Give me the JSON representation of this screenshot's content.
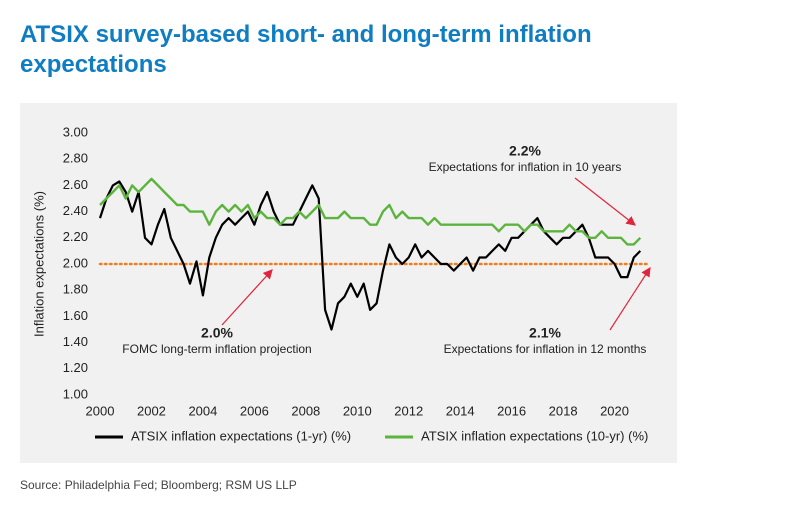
{
  "chart_data": {
    "type": "line",
    "title": "ATSIX survey-based short- and long-term inflation expectations",
    "ylabel": "Inflation expectations (%)",
    "source": "Source: Philadelphia Fed; Bloomberg; RSM US LLP",
    "xlim": [
      2000,
      2021.3
    ],
    "xticks": [
      2000,
      2002,
      2004,
      2006,
      2008,
      2010,
      2012,
      2014,
      2016,
      2018,
      2020
    ],
    "ylim": [
      1,
      3
    ],
    "yticks": [
      {
        "value": 1,
        "label": "1.00"
      },
      {
        "value": 1.2,
        "label": "1.20"
      },
      {
        "value": 1.4,
        "label": "1.40"
      },
      {
        "value": 1.6,
        "label": "1.60"
      },
      {
        "value": 1.8,
        "label": "1.80"
      },
      {
        "value": 2,
        "label": "2.00"
      },
      {
        "value": 2.2,
        "label": "2.20"
      },
      {
        "value": 2.4,
        "label": "2.40"
      },
      {
        "value": 2.6,
        "label": "2.60"
      },
      {
        "value": 2.8,
        "label": "2.80"
      },
      {
        "value": 3,
        "label": "3.00"
      }
    ],
    "reference_line": {
      "value": 2,
      "color": "#f07d1e"
    },
    "annotations": [
      {
        "label": "2.2%",
        "text": "Expectations for inflation in 10 years"
      },
      {
        "label": "2.0%",
        "text": "FOMC long-term inflation projection"
      },
      {
        "label": "2.1%",
        "text": "Expectations for inflation in 12 months"
      }
    ],
    "x": [
      2000,
      2000.25,
      2000.5,
      2000.75,
      2001,
      2001.25,
      2001.5,
      2001.75,
      2002,
      2002.25,
      2002.5,
      2002.75,
      2003,
      2003.25,
      2003.5,
      2003.75,
      2004,
      2004.25,
      2004.5,
      2004.75,
      2005,
      2005.25,
      2005.5,
      2005.75,
      2006,
      2006.25,
      2006.5,
      2006.75,
      2007,
      2007.25,
      2007.5,
      2007.75,
      2008,
      2008.25,
      2008.5,
      2008.75,
      2009,
      2009.25,
      2009.5,
      2009.75,
      2010,
      2010.25,
      2010.5,
      2010.75,
      2011,
      2011.25,
      2011.5,
      2011.75,
      2012,
      2012.25,
      2012.5,
      2012.75,
      2013,
      2013.25,
      2013.5,
      2013.75,
      2014,
      2014.25,
      2014.5,
      2014.75,
      2015,
      2015.25,
      2015.5,
      2015.75,
      2016,
      2016.25,
      2016.5,
      2016.75,
      2017,
      2017.25,
      2017.5,
      2017.75,
      2018,
      2018.25,
      2018.5,
      2018.75,
      2019,
      2019.25,
      2019.5,
      2019.75,
      2020,
      2020.25,
      2020.5,
      2020.75,
      2021
    ],
    "series": [
      {
        "name": "ATSIX inflation expectations (1-yr) (%)",
        "color": "#000000",
        "values": [
          2.35,
          2.5,
          2.6,
          2.63,
          2.55,
          2.4,
          2.55,
          2.2,
          2.15,
          2.3,
          2.42,
          2.2,
          2.1,
          2.0,
          1.85,
          2.02,
          1.76,
          2.05,
          2.2,
          2.3,
          2.35,
          2.3,
          2.35,
          2.4,
          2.3,
          2.45,
          2.55,
          2.4,
          2.3,
          2.3,
          2.3,
          2.4,
          2.5,
          2.6,
          2.5,
          1.65,
          1.5,
          1.7,
          1.75,
          1.85,
          1.75,
          1.85,
          1.65,
          1.7,
          1.95,
          2.15,
          2.05,
          2.0,
          2.05,
          2.15,
          2.05,
          2.1,
          2.05,
          2.0,
          2.0,
          1.95,
          2.0,
          2.05,
          1.95,
          2.05,
          2.05,
          2.1,
          2.15,
          2.1,
          2.2,
          2.2,
          2.25,
          2.3,
          2.35,
          2.25,
          2.2,
          2.15,
          2.2,
          2.2,
          2.25,
          2.3,
          2.2,
          2.05,
          2.05,
          2.05,
          2.0,
          1.9,
          1.9,
          2.05,
          2.1
        ]
      },
      {
        "name": "ATSIX inflation expectations (10-yr) (%)",
        "color": "#5cb43e",
        "values": [
          2.45,
          2.5,
          2.55,
          2.6,
          2.5,
          2.6,
          2.55,
          2.6,
          2.65,
          2.6,
          2.55,
          2.5,
          2.45,
          2.45,
          2.4,
          2.4,
          2.4,
          2.3,
          2.4,
          2.45,
          2.4,
          2.45,
          2.4,
          2.45,
          2.35,
          2.4,
          2.35,
          2.35,
          2.3,
          2.35,
          2.35,
          2.4,
          2.35,
          2.4,
          2.45,
          2.35,
          2.35,
          2.35,
          2.4,
          2.35,
          2.35,
          2.35,
          2.3,
          2.3,
          2.4,
          2.45,
          2.35,
          2.4,
          2.35,
          2.35,
          2.35,
          2.3,
          2.35,
          2.3,
          2.3,
          2.3,
          2.3,
          2.3,
          2.3,
          2.3,
          2.3,
          2.3,
          2.25,
          2.3,
          2.3,
          2.3,
          2.25,
          2.3,
          2.3,
          2.25,
          2.25,
          2.25,
          2.25,
          2.3,
          2.25,
          2.25,
          2.2,
          2.2,
          2.25,
          2.2,
          2.2,
          2.2,
          2.15,
          2.15,
          2.2
        ]
      }
    ]
  }
}
